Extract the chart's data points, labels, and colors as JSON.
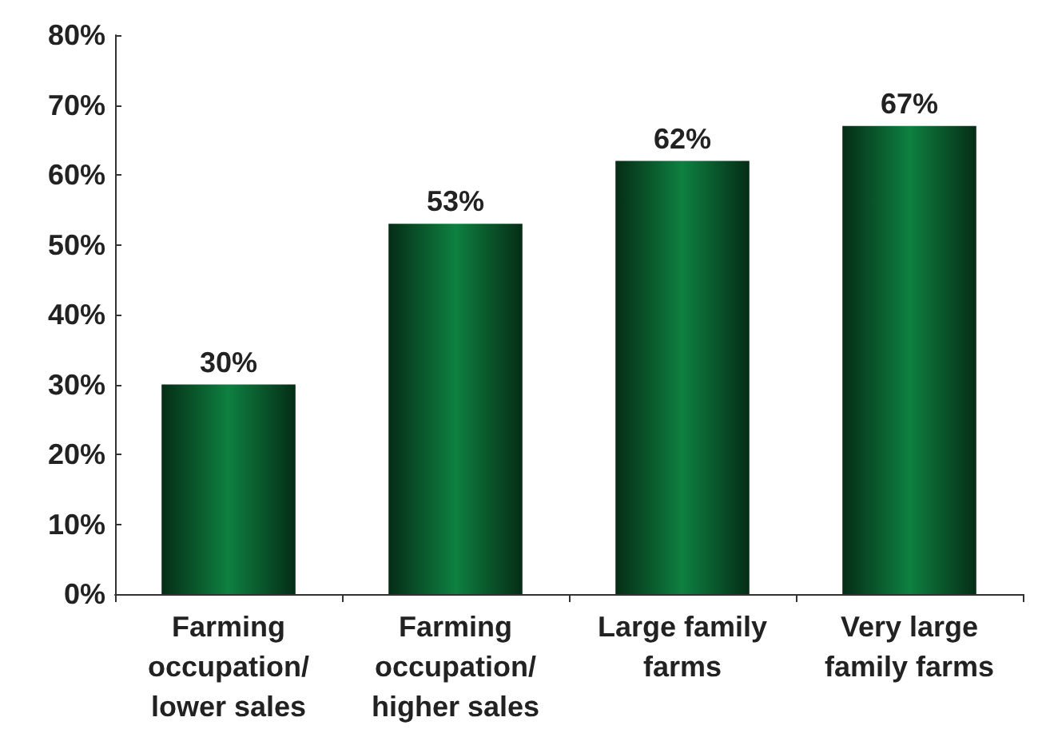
{
  "chart_data": {
    "type": "bar",
    "categories": [
      "Farming\noccupation/\nlower sales",
      "Farming\noccupation/\nhigher sales",
      "Large family\nfarms",
      "Very large\nfamily farms"
    ],
    "values": [
      30,
      53,
      62,
      67
    ],
    "value_labels": [
      "30%",
      "53%",
      "62%",
      "67%"
    ],
    "color": "#0e8040",
    "ylim": [
      0,
      80
    ],
    "yticks": [
      {
        "value": 0,
        "label": "0%"
      },
      {
        "value": 10,
        "label": "10%"
      },
      {
        "value": 20,
        "label": "20%"
      },
      {
        "value": 30,
        "label": "30%"
      },
      {
        "value": 40,
        "label": "40%"
      },
      {
        "value": 50,
        "label": "50%"
      },
      {
        "value": 60,
        "label": "60%"
      },
      {
        "value": 70,
        "label": "70%"
      },
      {
        "value": 80,
        "label": "80%"
      }
    ],
    "grid": false
  }
}
